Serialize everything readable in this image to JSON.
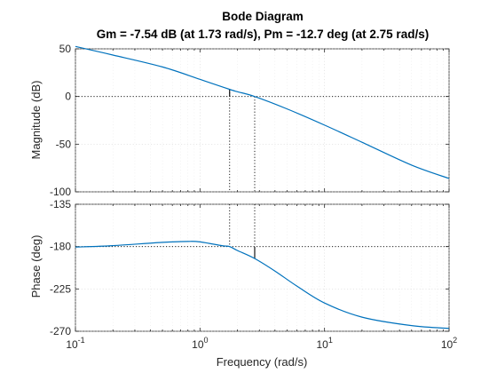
{
  "chart_data": {
    "type": "line",
    "title": "Bode Diagram",
    "subtitle": "Gm = -7.54 dB (at 1.73 rad/s),  Pm = -12.7 deg (at 2.75 rad/s)",
    "xlabel": "Frequency  (rad/s)",
    "xscale": "log",
    "xlim": [
      0.1,
      100
    ],
    "x_ticks": [
      {
        "value": 0.1,
        "base": "10",
        "exp": "-1"
      },
      {
        "value": 1,
        "base": "10",
        "exp": "0"
      },
      {
        "value": 10,
        "base": "10",
        "exp": "1"
      },
      {
        "value": 100,
        "base": "10",
        "exp": "2"
      }
    ],
    "grid": true,
    "line_color": "#0072BD",
    "margins": {
      "gain_margin_db": -7.54,
      "gain_crossover_freq": 1.73,
      "phase_margin_deg": -12.7,
      "phase_crossover_freq": 2.75
    },
    "magnitude": {
      "ylabel": "Magnitude (dB)",
      "ylim": [
        -100,
        50
      ],
      "yticks": [
        50,
        0,
        -50,
        -100
      ],
      "reference_line": 0,
      "x": [
        0.1,
        0.2,
        0.5,
        1,
        1.73,
        2,
        2.75,
        5,
        10,
        20,
        50,
        100
      ],
      "values": [
        52.5,
        43.5,
        31,
        18,
        7.5,
        5,
        0,
        -13,
        -30,
        -48,
        -72,
        -86
      ]
    },
    "phase": {
      "ylabel": "Phase (deg)",
      "ylim": [
        -270,
        -135
      ],
      "yticks": [
        -135,
        -180,
        -225,
        -270
      ],
      "reference_line": -180,
      "x": [
        0.1,
        0.2,
        0.5,
        0.8,
        1,
        1.5,
        1.73,
        2,
        2.75,
        4,
        6,
        10,
        20,
        50,
        100
      ],
      "values": [
        -180.5,
        -179,
        -175.5,
        -174.5,
        -175,
        -179,
        -180,
        -184.2,
        -192.7,
        -206,
        -222,
        -240,
        -255,
        -264,
        -267
      ]
    }
  }
}
